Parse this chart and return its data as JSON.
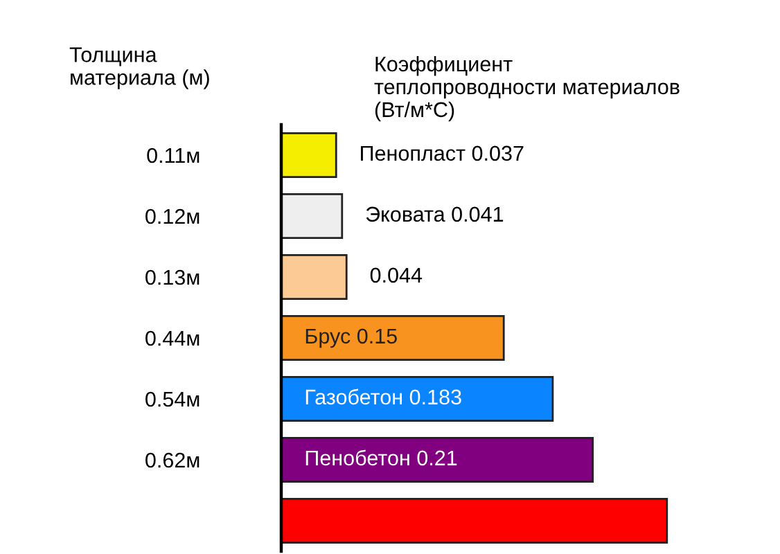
{
  "chart_data": {
    "type": "bar",
    "orientation": "horizontal",
    "title": "Коэффициент\nтеплопроводности материалов\n(Вт/м*С)",
    "ylabel": "Толщина\nматериала (м)",
    "categories": [
      "0.11м",
      "0.12м",
      "0.13м",
      "0.44м",
      "0.54м",
      "0.62м",
      null
    ],
    "values": [
      0.037,
      0.041,
      0.044,
      0.15,
      0.183,
      0.21,
      0.26
    ],
    "colors": [
      "#f5ee00",
      "#eeeeee",
      "#fcca94",
      "#f7931e",
      "#0a84ff",
      "#800080",
      "#ff0000"
    ],
    "value_labels": [
      "Пенопласт 0.037",
      "Эковата 0.041",
      "0.044",
      "Брус 0.15",
      "Газобетон 0.183",
      "Пенобетон 0.21",
      null
    ],
    "tick_labels": "y",
    "grid": false,
    "legend": false
  }
}
